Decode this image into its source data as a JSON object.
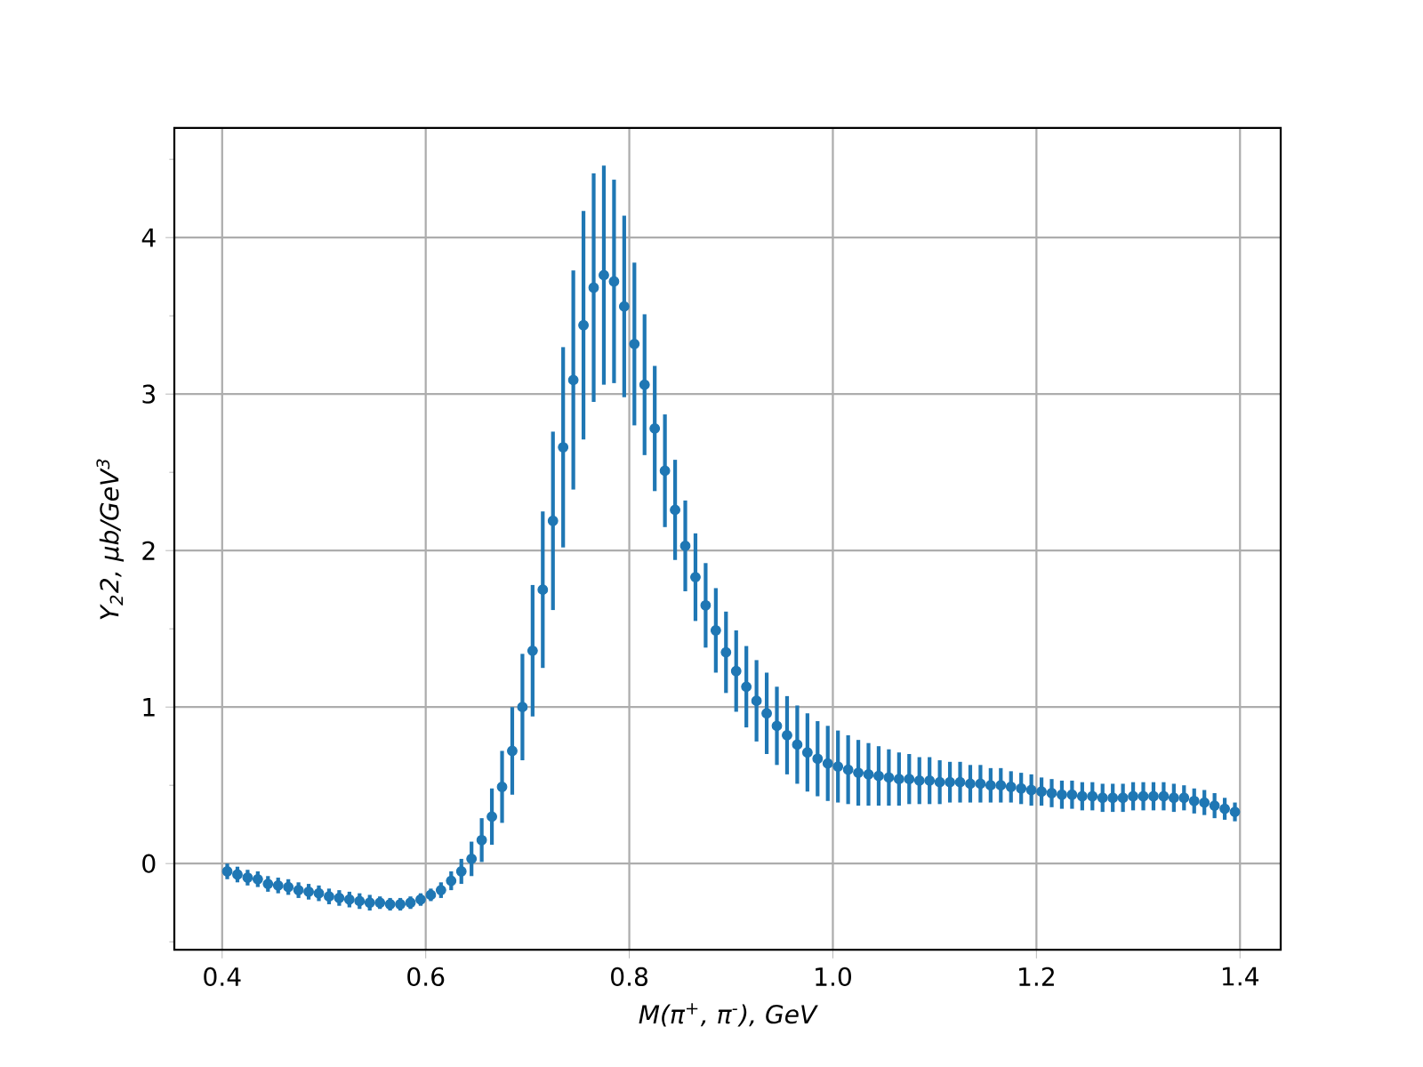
{
  "chart_data": {
    "type": "scatter",
    "xlabel": "M(π$^{+}$, π$^{-}$), GeV",
    "ylabel": "Y$_{2}$2, μb/GeV$^{3}$",
    "xlim": [
      0.353,
      1.44
    ],
    "ylim": [
      -0.55,
      4.7
    ],
    "xticks": [
      0.4,
      0.6,
      0.8,
      {
        "value": 1.0,
        "label": "1.0"
      },
      1.2,
      1.4
    ],
    "yticks": [
      {
        "value": -0.5,
        "label": null
      },
      0,
      {
        "value": 0.5,
        "label": null
      },
      1,
      {
        "value": 1.5,
        "label": null
      },
      2,
      {
        "value": 2.5,
        "label": null
      },
      3,
      {
        "value": 3.5,
        "label": null
      },
      4,
      {
        "value": 4.5,
        "label": null
      }
    ],
    "grid": true,
    "series": [
      {
        "color": "#1f77b4",
        "x": [
          0.405,
          0.415,
          0.425,
          0.435,
          0.445,
          0.455,
          0.465,
          0.475,
          0.485,
          0.495,
          0.505,
          0.515,
          0.525,
          0.535,
          0.545,
          0.555,
          0.565,
          0.575,
          0.585,
          0.595,
          0.605,
          0.615,
          0.625,
          0.635,
          0.645,
          0.655,
          0.665,
          0.675,
          0.685,
          0.695,
          0.705,
          0.715,
          0.725,
          0.735,
          0.745,
          0.755,
          0.765,
          0.775,
          0.785,
          0.795,
          0.805,
          0.815,
          0.825,
          0.835,
          0.845,
          0.855,
          0.865,
          0.875,
          0.885,
          0.895,
          0.905,
          0.915,
          0.925,
          0.935,
          0.945,
          0.955,
          0.965,
          0.975,
          0.985,
          0.995,
          1.005,
          1.015,
          1.025,
          1.035,
          1.045,
          1.055,
          1.065,
          1.075,
          1.085,
          1.095,
          1.105,
          1.115,
          1.125,
          1.135,
          1.145,
          1.155,
          1.165,
          1.175,
          1.185,
          1.195,
          1.205,
          1.215,
          1.225,
          1.235,
          1.245,
          1.255,
          1.265,
          1.275,
          1.285,
          1.295,
          1.305,
          1.315,
          1.325,
          1.335,
          1.345,
          1.355,
          1.365,
          1.375,
          1.385,
          1.395
        ],
        "values": [
          -0.05,
          -0.07,
          -0.09,
          -0.1,
          -0.13,
          -0.14,
          -0.15,
          -0.17,
          -0.18,
          -0.19,
          -0.21,
          -0.22,
          -0.23,
          -0.24,
          -0.25,
          -0.25,
          -0.26,
          -0.26,
          -0.25,
          -0.23,
          -0.2,
          -0.17,
          -0.11,
          -0.05,
          0.03,
          0.15,
          0.3,
          0.49,
          0.72,
          1.0,
          1.36,
          1.75,
          2.19,
          2.66,
          3.09,
          3.44,
          3.68,
          3.76,
          3.72,
          3.56,
          3.32,
          3.06,
          2.78,
          2.51,
          2.26,
          2.03,
          1.83,
          1.65,
          1.49,
          1.35,
          1.23,
          1.13,
          1.04,
          0.96,
          0.88,
          0.82,
          0.76,
          0.71,
          0.67,
          0.64,
          0.62,
          0.6,
          0.58,
          0.57,
          0.56,
          0.55,
          0.54,
          0.54,
          0.53,
          0.53,
          0.52,
          0.52,
          0.52,
          0.51,
          0.51,
          0.5,
          0.5,
          0.49,
          0.48,
          0.47,
          0.46,
          0.45,
          0.44,
          0.44,
          0.43,
          0.43,
          0.42,
          0.42,
          0.42,
          0.43,
          0.43,
          0.43,
          0.43,
          0.42,
          0.42,
          0.4,
          0.39,
          0.37,
          0.35,
          0.33
        ],
        "errors": [
          0.05,
          0.05,
          0.05,
          0.05,
          0.05,
          0.05,
          0.05,
          0.05,
          0.05,
          0.05,
          0.05,
          0.05,
          0.05,
          0.05,
          0.05,
          0.04,
          0.04,
          0.04,
          0.04,
          0.04,
          0.04,
          0.05,
          0.06,
          0.08,
          0.11,
          0.14,
          0.18,
          0.23,
          0.28,
          0.34,
          0.42,
          0.5,
          0.57,
          0.64,
          0.7,
          0.73,
          0.73,
          0.7,
          0.65,
          0.58,
          0.52,
          0.45,
          0.4,
          0.36,
          0.32,
          0.29,
          0.28,
          0.27,
          0.27,
          0.26,
          0.26,
          0.26,
          0.26,
          0.26,
          0.25,
          0.25,
          0.25,
          0.25,
          0.24,
          0.24,
          0.23,
          0.22,
          0.21,
          0.2,
          0.19,
          0.18,
          0.17,
          0.16,
          0.15,
          0.15,
          0.14,
          0.13,
          0.13,
          0.12,
          0.12,
          0.11,
          0.11,
          0.1,
          0.1,
          0.1,
          0.09,
          0.09,
          0.09,
          0.09,
          0.09,
          0.09,
          0.09,
          0.09,
          0.09,
          0.09,
          0.09,
          0.09,
          0.09,
          0.09,
          0.08,
          0.08,
          0.08,
          0.08,
          0.07,
          0.06
        ]
      }
    ]
  }
}
